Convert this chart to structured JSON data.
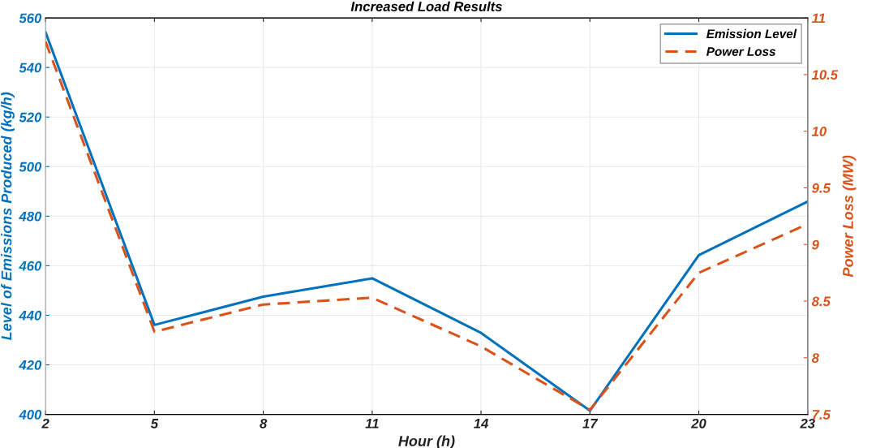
{
  "chart_data": {
    "type": "line",
    "title": "Increased Load Results",
    "xlabel": "Hour (h)",
    "ylabel": "Level of Emissions Produced (kg/h)",
    "y2label": "Power Loss (MW)",
    "x": [
      2,
      5,
      8,
      11,
      14,
      17,
      20,
      23
    ],
    "series": [
      {
        "name": "Emission Level",
        "color": "#0072bd",
        "line_style": "solid",
        "values": [
          554.2,
          436.1,
          447.5,
          454.9,
          432.9,
          401.5,
          464.3,
          485.9
        ]
      },
      {
        "name": "Power Loss",
        "color": "#d95319",
        "line_style": "dashed",
        "axis": "y2",
        "values": [
          10.79,
          8.23,
          8.47,
          8.53,
          8.1,
          7.54,
          8.75,
          9.18
        ]
      }
    ],
    "xlim": [
      2,
      23
    ],
    "xticks": [
      2,
      5,
      8,
      11,
      14,
      17,
      20,
      23
    ],
    "ylim": [
      400,
      560
    ],
    "yticks": [
      400,
      420,
      440,
      460,
      480,
      500,
      520,
      540,
      560
    ],
    "y2lim": [
      7.5,
      11
    ],
    "y2ticks": [
      7.5,
      8,
      8.5,
      9,
      9.5,
      10,
      10.5,
      11
    ],
    "grid": true,
    "legend": "top right",
    "marker": "none"
  }
}
